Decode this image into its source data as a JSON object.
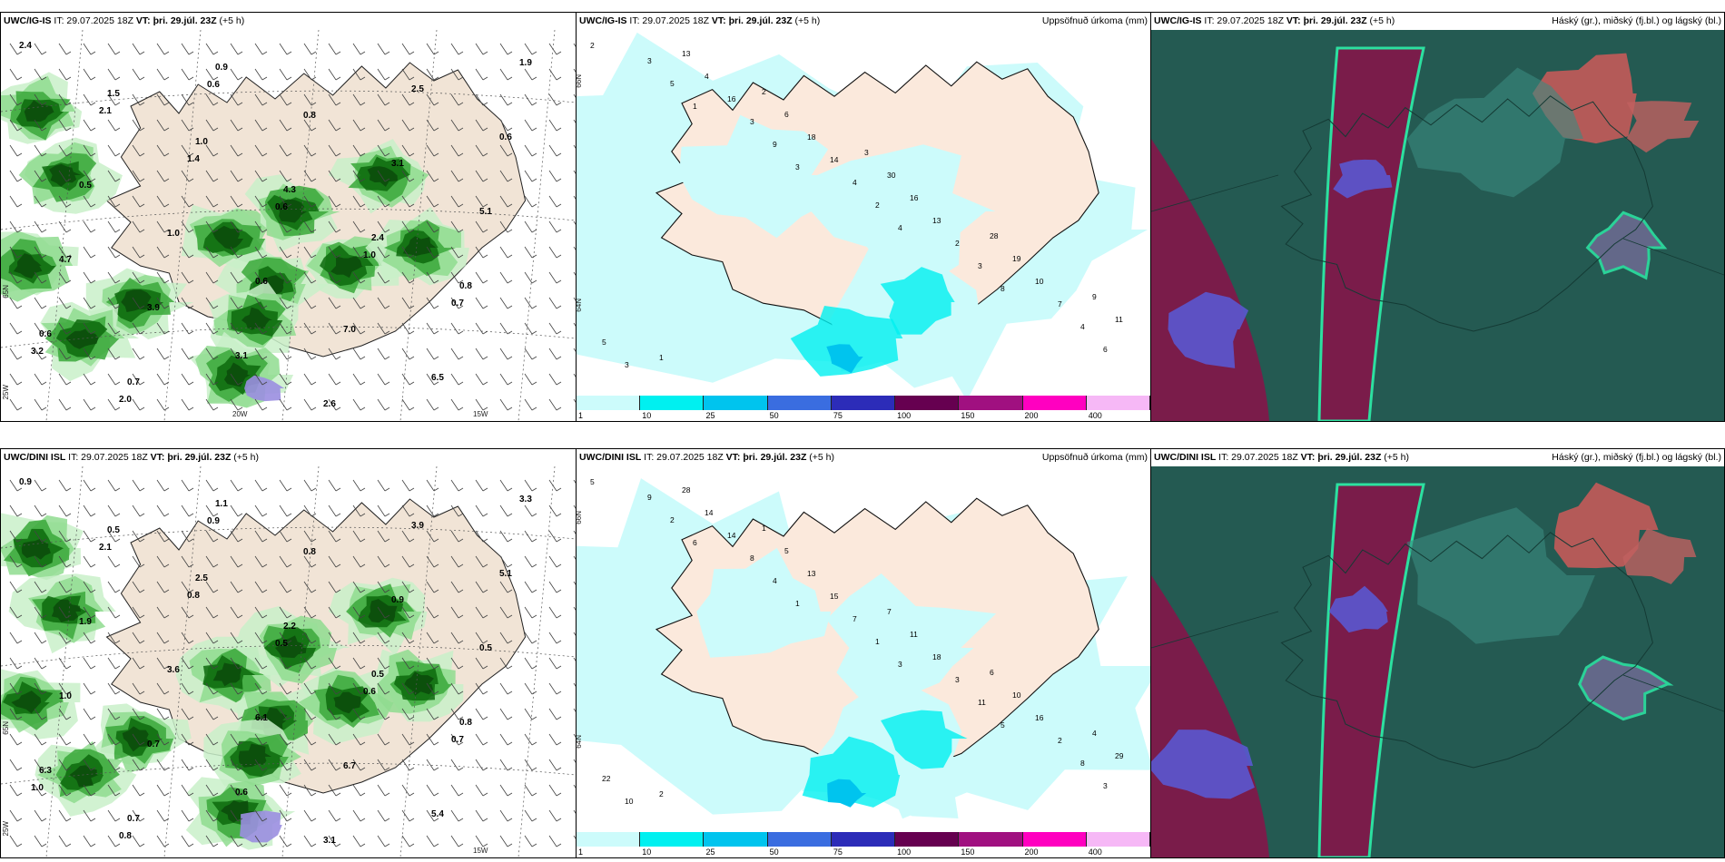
{
  "panels": [
    {
      "model": "UWC/IG-IS",
      "it": "IT: 29.07.2025 18Z",
      "vt_label": "VT:",
      "vt": "þri. 29.júl. 23Z",
      "lead": "(+5 h)",
      "right_title": "",
      "grid_labels": {
        "lat": "65N",
        "lon1": "20W",
        "lon2": "15W",
        "lon3": "25W"
      }
    },
    {
      "model": "UWC/IG-IS",
      "it": "IT: 29.07.2025 18Z",
      "vt_label": "VT:",
      "vt": "þri. 29.júl. 23Z",
      "lead": "(+5 h)",
      "right_title": "Uppsöfnuð úrkoma (mm)",
      "grid_labels": {
        "lat1": "66N",
        "lat2": "64N"
      }
    },
    {
      "model": "UWC/IG-IS",
      "it": "IT: 29.07.2025 18Z",
      "vt_label": "VT:",
      "vt": "þri. 29.júl. 23Z",
      "lead": "(+5 h)",
      "right_title": "Háský (gr.), miðský (fj.bl.) og lágský (bl.)"
    },
    {
      "model": "UWC/DINI ISL",
      "it": "IT: 29.07.2025 18Z",
      "vt_label": "VT:",
      "vt": "þri. 29.júl. 23Z",
      "lead": "(+5 h)",
      "right_title": "",
      "grid_labels": {
        "lat": "65N",
        "lon1": "20W",
        "lon2": "15W",
        "lon3": "25W"
      }
    },
    {
      "model": "UWC/DINI ISL",
      "it": "IT: 29.07.2025 18Z",
      "vt_label": "VT:",
      "vt": "þri. 29.júl. 23Z",
      "lead": "(+5 h)",
      "right_title": "Uppsöfnuð úrkoma (mm)",
      "grid_labels": {
        "lat1": "66N",
        "lat2": "64N"
      }
    },
    {
      "model": "UWC/DINI ISL",
      "it": "IT: 29.07.2025 18Z",
      "vt_label": "VT:",
      "vt": "þri. 29.júl. 23Z",
      "lead": "(+5 h)",
      "right_title": "Háský (gr.), miðský (fj.bl.) og lágský (bl.)"
    }
  ],
  "colorbar": {
    "labels": [
      "1",
      "10",
      "25",
      "50",
      "75",
      "100",
      "150",
      "200",
      "400"
    ],
    "colors": [
      "#ccfbfb",
      "#00f0f0",
      "#00c4ee",
      "#3a6de0",
      "#2c2cb8",
      "#660050",
      "#a01080",
      "#ff00c0",
      "#f6b8f6"
    ]
  },
  "precip_values_top": [
    "2",
    "1",
    "3",
    "4",
    "8",
    "6",
    "5",
    "9",
    "2",
    "3",
    "4",
    "3",
    "3",
    "4",
    "2",
    "7",
    "3",
    "16",
    "14",
    "13",
    "10",
    "5",
    "4",
    "18",
    "16",
    "19",
    "11",
    "13",
    "6",
    "30",
    "28",
    "9",
    "1",
    "2",
    "3"
  ],
  "precip_values_bottom": [
    "5",
    "6",
    "1",
    "3",
    "5",
    "3",
    "2",
    "4",
    "1",
    "11",
    "8",
    "9",
    "8",
    "7",
    "3",
    "2",
    "10",
    "14",
    "15",
    "18",
    "16",
    "22",
    "14",
    "13",
    "11",
    "10",
    "29",
    "28",
    "5",
    "7",
    "6",
    "4",
    "2",
    "1"
  ],
  "wind_values_top": [
    "2.4",
    "1.5",
    "1.0",
    "4.3",
    "2.4",
    "0.8",
    "0.6",
    "0.7",
    "0.9",
    "0.8",
    "3.1",
    "5.1",
    "4.7",
    "3.9",
    "3.1",
    "2.6",
    "2.5",
    "0.6",
    "0.5",
    "1.0",
    "0.6",
    "7.0",
    "6.5",
    "1.9",
    "2.1",
    "1.4",
    "0.6",
    "1.0",
    "0.7",
    "3.2",
    "2.0",
    "0.6"
  ],
  "wind_values_bottom": [
    "0.9",
    "0.5",
    "2.5",
    "2.2",
    "0.5",
    "0.8",
    "6.3",
    "0.7",
    "1.1",
    "0.8",
    "0.9",
    "0.5",
    "1.0",
    "0.7",
    "0.6",
    "3.1",
    "3.9",
    "5.1",
    "1.9",
    "3.6",
    "6.1",
    "6.7",
    "5.4",
    "3.3",
    "2.1",
    "0.8",
    "0.5",
    "0.6",
    "0.7",
    "1.0",
    "0.8",
    "0.9"
  ]
}
